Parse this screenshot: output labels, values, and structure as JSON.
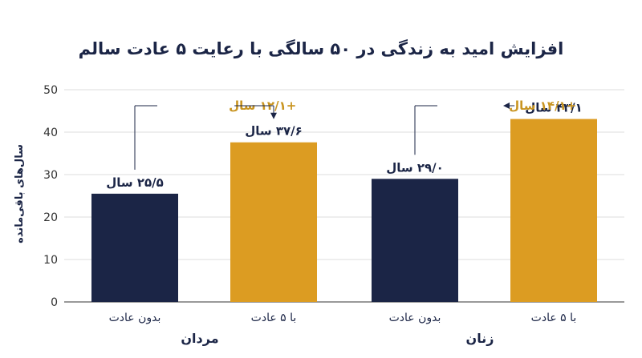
{
  "chart_data": {
    "type": "bar",
    "title": "افزایش امید به زندگی در ۵۰ سالگی با رعایت ۵ عادت سالم",
    "ylabel": "سال‌های باقی‌مانده",
    "xlabel": "",
    "ylim": [
      0,
      50
    ],
    "yticks": [
      0,
      10,
      20,
      30,
      40,
      50
    ],
    "grid": true,
    "colors": {
      "without": "#1b2546",
      "with": "#dc9c22",
      "annotation": "#c99522",
      "text": "#1b2546"
    },
    "groups": [
      {
        "name": "مردان",
        "bars": [
          {
            "category": "بدون عادت",
            "value": 25.5,
            "label": "۲۵/۵ سال",
            "kind": "without"
          },
          {
            "category": "با ۵ عادت",
            "value": 37.6,
            "label": "۳۷/۶ سال",
            "kind": "with"
          }
        ],
        "gain_label": "+۱۲/۱ سال"
      },
      {
        "name": "زنان",
        "bars": [
          {
            "category": "بدون عادت",
            "value": 29.0,
            "label": "۲۹/۰ سال",
            "kind": "without"
          },
          {
            "category": "با ۵ عادت",
            "value": 43.1,
            "label": "۴۳/۱ سال",
            "kind": "with"
          }
        ],
        "gain_label": "+۱۴/۱ سال"
      }
    ]
  }
}
